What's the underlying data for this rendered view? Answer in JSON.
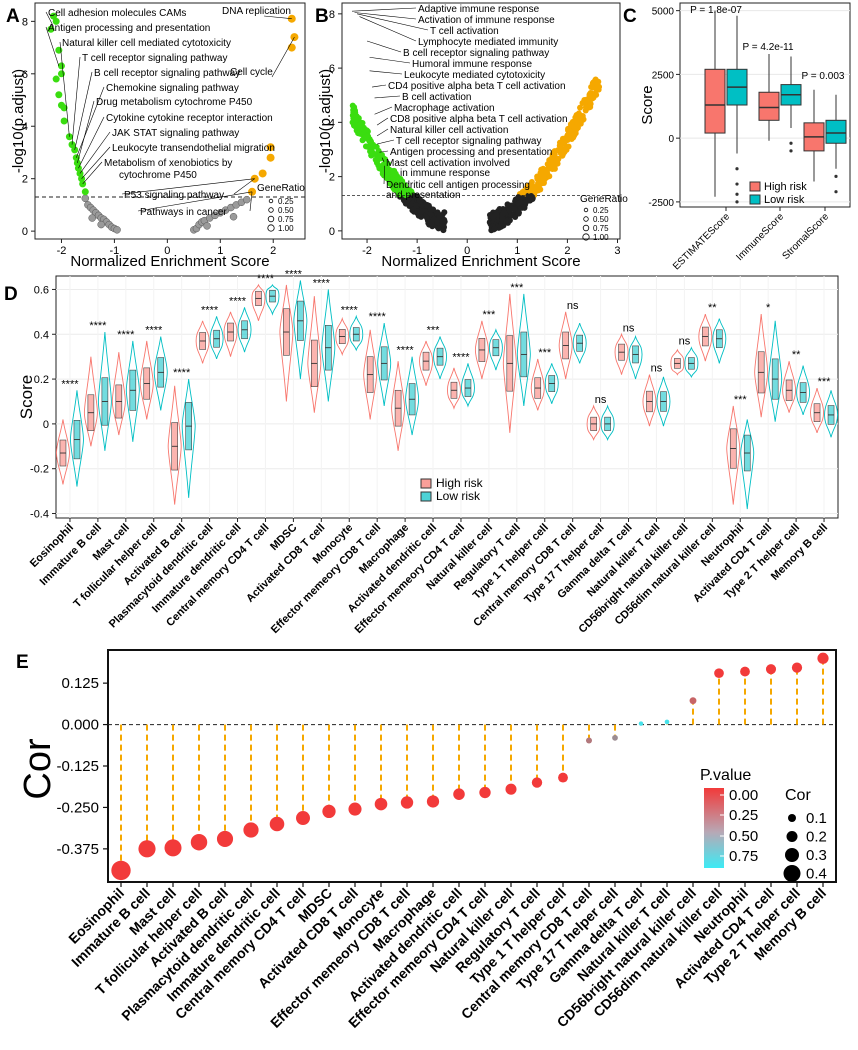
{
  "chart_data": [
    {
      "panel": "A",
      "type": "scatter",
      "xlabel": "Normalized Enrichment Score",
      "ylabel": "-log10(p.adjust)",
      "xlim": [
        -2.5,
        2.6
      ],
      "ylim": [
        -0.3,
        8.7
      ],
      "xticks": [
        -2,
        -1,
        0,
        1,
        2
      ],
      "yticks": [
        0,
        2,
        4,
        6,
        8
      ],
      "threshold": 1.3,
      "legend_title": "GeneRatio",
      "legend_items": [
        "0.25",
        "0.50",
        "0.75",
        "1.00"
      ],
      "labels": [
        {
          "text": "Cell adhesion molecules CAMs",
          "x": -2.15,
          "y": 7.8
        },
        {
          "text": "Antigen processing and presentation",
          "x": -2.05,
          "y": 6.3
        },
        {
          "text": "Natural killer cell mediated cytotoxicity",
          "x": -1.85,
          "y": 3.6
        },
        {
          "text": "T cell receptor signaling pathway",
          "x": -1.8,
          "y": 3.3
        },
        {
          "text": "B cell receptor signaling pathway",
          "x": -1.75,
          "y": 3.1
        },
        {
          "text": "Chemokine signaling pathway",
          "x": -1.72,
          "y": 2.8
        },
        {
          "text": "Drug metabolism cytochrome P450",
          "x": -1.7,
          "y": 2.6
        },
        {
          "text": "Cytokine cytokine receptor interaction",
          "x": -1.68,
          "y": 2.4
        },
        {
          "text": "JAK STAT signaling pathway",
          "x": -1.65,
          "y": 2.2
        },
        {
          "text": "Leukocyte transendothelial migration",
          "x": -1.62,
          "y": 2.0
        },
        {
          "text": "Metabolism of xenobiotics by",
          "x": -1.6,
          "y": 1.8
        },
        {
          "text": "cytochrome P450",
          "x": -1.6,
          "y": 1.8
        },
        {
          "text": "P53 signaling pathway",
          "x": 1.65,
          "y": 2.0
        },
        {
          "text": "Pathways in cancer",
          "x": 1.6,
          "y": 1.5
        },
        {
          "text": "DNA replication",
          "x": 2.35,
          "y": 8.1
        },
        {
          "text": "Cell cycle",
          "x": 2.4,
          "y": 7.4
        }
      ],
      "sig_neg": [
        [
          -2.15,
          8.2
        ],
        [
          -2.1,
          8.0
        ],
        [
          -2.2,
          7.7
        ],
        [
          -2.05,
          6.9
        ],
        [
          -2.0,
          6.3
        ],
        [
          -2.0,
          6.0
        ],
        [
          -2.1,
          5.8
        ],
        [
          -2.05,
          5.2
        ],
        [
          -2.0,
          4.8
        ],
        [
          -1.95,
          4.7
        ],
        [
          -1.95,
          4.2
        ],
        [
          -1.85,
          3.6
        ],
        [
          -1.8,
          3.3
        ],
        [
          -1.75,
          3.1
        ],
        [
          -1.72,
          2.8
        ],
        [
          -1.7,
          2.6
        ],
        [
          -1.68,
          2.4
        ],
        [
          -1.65,
          2.2
        ],
        [
          -1.62,
          2.0
        ],
        [
          -1.6,
          1.8
        ],
        [
          -1.55,
          1.5
        ]
      ],
      "sig_pos": [
        [
          2.35,
          8.1
        ],
        [
          2.4,
          7.4
        ],
        [
          2.35,
          7.0
        ],
        [
          1.95,
          3.2
        ],
        [
          1.95,
          2.8
        ],
        [
          1.65,
          2.0
        ],
        [
          1.8,
          2.2
        ],
        [
          1.6,
          1.5
        ]
      ],
      "nonsig": [
        [
          -1.55,
          1.25
        ],
        [
          -1.5,
          1.0
        ],
        [
          -1.45,
          0.9
        ],
        [
          -1.4,
          0.8
        ],
        [
          -1.35,
          0.7
        ],
        [
          -1.3,
          0.6
        ],
        [
          -1.25,
          0.5
        ],
        [
          -1.2,
          0.45
        ],
        [
          -1.15,
          0.35
        ],
        [
          -1.1,
          0.25
        ],
        [
          -1.05,
          0.15
        ],
        [
          -1.0,
          0.1
        ],
        [
          -0.95,
          0.05
        ],
        [
          -1.42,
          0.5
        ],
        [
          -1.25,
          0.25
        ],
        [
          0.5,
          0.05
        ],
        [
          0.55,
          0.1
        ],
        [
          0.6,
          0.25
        ],
        [
          0.65,
          0.35
        ],
        [
          0.7,
          0.4
        ],
        [
          0.8,
          0.5
        ],
        [
          0.9,
          0.6
        ],
        [
          1.0,
          0.7
        ],
        [
          1.1,
          0.8
        ],
        [
          1.2,
          0.9
        ],
        [
          1.3,
          1.0
        ],
        [
          1.4,
          1.1
        ],
        [
          1.5,
          1.2
        ],
        [
          0.75,
          0.2
        ],
        [
          1.25,
          0.55
        ]
      ]
    },
    {
      "panel": "B",
      "type": "scatter",
      "xlabel": "Normalized Enrichment Score",
      "ylabel": "-log10(p.adjust)",
      "xlim": [
        -2.5,
        3.05
      ],
      "ylim": [
        -0.3,
        8.4
      ],
      "xticks": [
        -2,
        -1,
        0,
        1,
        2,
        3
      ],
      "yticks": [
        0,
        2,
        4,
        6,
        8
      ],
      "threshold": 1.3,
      "legend_title": "GeneRatio",
      "legend_items": [
        "0.25",
        "0.50",
        "0.75",
        "1.00"
      ],
      "labels": [
        {
          "text": "Adaptive immune response",
          "x": -2.3,
          "y": 8.1
        },
        {
          "text": "Activation of immune response",
          "x": -2.25,
          "y": 8.05
        },
        {
          "text": "T cell activation",
          "x": -2.2,
          "y": 8.0
        },
        {
          "text": "Lymphocyte mediated immunity",
          "x": -2.15,
          "y": 7.9
        },
        {
          "text": "B cell receptor signaling pathway",
          "x": -2.0,
          "y": 7.0
        },
        {
          "text": "Humoral immune response",
          "x": -1.95,
          "y": 6.4
        },
        {
          "text": "Leukocyte mediated cytotoxicity",
          "x": -1.95,
          "y": 5.9
        },
        {
          "text": "CD4 positive alpha beta T cell activation",
          "x": -1.9,
          "y": 5.3
        },
        {
          "text": "B cell activation",
          "x": -1.85,
          "y": 4.9
        },
        {
          "text": "Macrophage activation",
          "x": -1.85,
          "y": 4.3
        },
        {
          "text": "CD8 positive alpha beta T cell activation",
          "x": -1.8,
          "y": 3.9
        },
        {
          "text": "Natural killer cell activation",
          "x": -1.8,
          "y": 3.5
        },
        {
          "text": "T cell receptor signaling pathway",
          "x": -1.8,
          "y": 3.2
        },
        {
          "text": "Antigen processing and presentation",
          "x": -1.75,
          "y": 2.9
        },
        {
          "text": "Mast cell activation involved",
          "x": -1.7,
          "y": 2.7
        },
        {
          "text": "in immune response",
          "x": -1.7,
          "y": 2.7
        },
        {
          "text": "Dendritic cell antigen processing",
          "x": -1.65,
          "y": 2.4
        },
        {
          "text": "and presentation",
          "x": -1.65,
          "y": 2.4
        }
      ]
    },
    {
      "panel": "C",
      "type": "box",
      "ylabel": "Score",
      "ylim": [
        -2700,
        5300
      ],
      "yticks": [
        -2500,
        0,
        2500,
        5000
      ],
      "categories": [
        "ESTIMATEScore",
        "ImmuneScore",
        "StromalScore"
      ],
      "pvalues": [
        "P = 1.8e-07",
        "P = 4.2e-11",
        "P = 0.003"
      ],
      "legend": [
        "High risk",
        "Low risk"
      ],
      "colors": {
        "high": "#F8766D",
        "low": "#00BFC4"
      },
      "series": [
        {
          "name": "High risk",
          "boxes": [
            {
              "min": -2300,
              "q1": 200,
              "med": 1300,
              "q3": 2700,
              "max": 5000,
              "outliers": []
            },
            {
              "min": -100,
              "q1": 700,
              "med": 1200,
              "q3": 1800,
              "max": 3300,
              "outliers": []
            },
            {
              "min": -1700,
              "q1": -500,
              "med": 50,
              "q3": 600,
              "max": 1900,
              "outliers": []
            }
          ]
        },
        {
          "name": "Low risk",
          "boxes": [
            {
              "min": -600,
              "q1": 1300,
              "med": 2000,
              "q3": 2700,
              "max": 4800,
              "outliers": [
                -1200,
                -1800,
                -2200,
                -2500
              ]
            },
            {
              "min": 400,
              "q1": 1300,
              "med": 1700,
              "q3": 2100,
              "max": 3200,
              "outliers": [
                -200,
                -500
              ]
            },
            {
              "min": -1200,
              "q1": -200,
              "med": 200,
              "q3": 700,
              "max": 1700,
              "outliers": [
                -1500,
                -2100
              ]
            }
          ]
        }
      ]
    },
    {
      "panel": "D",
      "type": "violin",
      "ylabel": "Score",
      "ylim": [
        -0.42,
        0.66
      ],
      "yticks": [
        -0.4,
        -0.2,
        0.0,
        0.2,
        0.4,
        0.6
      ],
      "legend": [
        "High risk",
        "Low risk"
      ],
      "categories": [
        "Eosinophil",
        "Immature  B cell",
        "Mast cell",
        "T follicular helper cell",
        "Activated B cell",
        "Plasmacytoid dendritic cell",
        "Immature dendritic cell",
        "Central memory CD4 T cell",
        "MDSC",
        "Activated CD8 T cell",
        "Monocyte",
        "Effector memeory CD8 T cell",
        "Macrophage",
        "Activated dendritic cell",
        "Effector memeory CD4 T cell",
        "Natural killer cell",
        "Regulatory T cell",
        "Type 1 T helper cell",
        "Central memory CD8 T cell",
        "Type 17 T helper cell",
        "Gamma delta T cell",
        "Natural killer T cell",
        "CD56bright natural killer cell",
        "CD56dim natural killer cell",
        "Neutrophil",
        "Activated CD4 T cell",
        "Type 2 T helper cell",
        "Memory B cell"
      ],
      "significance": [
        "****",
        "****",
        "****",
        "****",
        "****",
        "****",
        "****",
        "****",
        "****",
        "****",
        "****",
        "****",
        "****",
        "***",
        "****",
        "***",
        "***",
        "***",
        "ns",
        "ns",
        "ns",
        "ns",
        "ns",
        "**",
        "***",
        "*",
        "**",
        "***"
      ],
      "high_median": [
        -0.13,
        0.05,
        0.1,
        0.18,
        -0.1,
        0.37,
        0.41,
        0.56,
        0.41,
        0.27,
        0.39,
        0.22,
        0.07,
        0.28,
        0.15,
        0.33,
        0.27,
        0.16,
        0.35,
        0.0,
        0.32,
        0.1,
        0.27,
        0.39,
        -0.11,
        0.23,
        0.15,
        0.05
      ],
      "low_median": [
        -0.07,
        0.1,
        0.15,
        0.23,
        -0.01,
        0.38,
        0.42,
        0.57,
        0.46,
        0.34,
        0.4,
        0.27,
        0.11,
        0.3,
        0.16,
        0.34,
        0.31,
        0.18,
        0.36,
        0.0,
        0.31,
        0.1,
        0.27,
        0.38,
        -0.13,
        0.2,
        0.14,
        0.04
      ],
      "high_range": [
        [
          -0.27,
          0.02
        ],
        [
          -0.1,
          0.3
        ],
        [
          -0.05,
          0.32
        ],
        [
          0.02,
          0.37
        ],
        [
          -0.36,
          0.17
        ],
        [
          0.27,
          0.46
        ],
        [
          0.3,
          0.5
        ],
        [
          0.46,
          0.62
        ],
        [
          0.1,
          0.62
        ],
        [
          0.05,
          0.57
        ],
        [
          0.31,
          0.47
        ],
        [
          0.02,
          0.42
        ],
        [
          -0.12,
          0.28
        ],
        [
          0.17,
          0.37
        ],
        [
          0.07,
          0.25
        ],
        [
          0.2,
          0.46
        ],
        [
          -0.04,
          0.58
        ],
        [
          0.06,
          0.29
        ],
        [
          0.2,
          0.5
        ],
        [
          -0.07,
          0.08
        ],
        [
          0.22,
          0.4
        ],
        [
          -0.01,
          0.22
        ],
        [
          0.22,
          0.33
        ],
        [
          0.28,
          0.49
        ],
        [
          -0.36,
          0.08
        ],
        [
          0.03,
          0.49
        ],
        [
          0.05,
          0.28
        ],
        [
          -0.04,
          0.16
        ]
      ],
      "low_range": [
        [
          -0.28,
          0.15
        ],
        [
          -0.12,
          0.41
        ],
        [
          -0.08,
          0.37
        ],
        [
          0.06,
          0.39
        ],
        [
          -0.33,
          0.2
        ],
        [
          0.29,
          0.48
        ],
        [
          0.32,
          0.52
        ],
        [
          0.49,
          0.62
        ],
        [
          0.2,
          0.64
        ],
        [
          0.1,
          0.6
        ],
        [
          0.33,
          0.48
        ],
        [
          0.08,
          0.45
        ],
        [
          -0.05,
          0.3
        ],
        [
          0.2,
          0.39
        ],
        [
          0.08,
          0.27
        ],
        [
          0.24,
          0.42
        ],
        [
          0.08,
          0.58
        ],
        [
          0.09,
          0.27
        ],
        [
          0.27,
          0.45
        ],
        [
          -0.07,
          0.08
        ],
        [
          0.2,
          0.39
        ],
        [
          -0.01,
          0.21
        ],
        [
          0.21,
          0.34
        ],
        [
          0.27,
          0.47
        ],
        [
          -0.38,
          0.02
        ],
        [
          0.01,
          0.46
        ],
        [
          0.04,
          0.26
        ],
        [
          -0.06,
          0.15
        ]
      ]
    },
    {
      "panel": "E",
      "type": "lollipop",
      "ylabel": "Cor",
      "ylim": [
        -0.475,
        0.225
      ],
      "yticks": [
        0.125,
        0.0,
        -0.125,
        -0.25,
        -0.375
      ],
      "ytick_labels": [
        "0.125",
        "0.000",
        "-0.125",
        "-0.250",
        "-0.375"
      ],
      "categories": [
        "Eosinophil",
        "Immature  B cell",
        "Mast cell",
        "T follicular helper cell",
        "Activated B cell",
        "Plasmacytoid dendritic cell",
        "Immature dendritic cell",
        "Central memory CD4 T cell",
        "MDSC",
        "Activated CD8 T cell",
        "Monocyte",
        "Effector memeory CD8 T cell",
        "Macrophage",
        "Activated dendritic cell",
        "Effector memeory CD4 T cell",
        "Natural killer cell",
        "Regulatory T cell",
        "Type 1 T helper cell",
        "Central memory CD8 T cell",
        "Type 17 T helper cell",
        "Gamma delta T cell",
        "Natural killer T cell",
        "CD56bright natural killer cell",
        "CD56dim natural killer cell",
        "Neutrophil",
        "Activated CD4 T cell",
        "Type 2 T helper cell",
        "Memory B cell"
      ],
      "values": [
        -0.44,
        -0.375,
        -0.372,
        -0.355,
        -0.345,
        -0.318,
        -0.3,
        -0.282,
        -0.262,
        -0.255,
        -0.24,
        -0.235,
        -0.232,
        -0.21,
        -0.205,
        -0.195,
        -0.175,
        -0.16,
        -0.048,
        -0.04,
        0.003,
        0.008,
        0.072,
        0.155,
        0.16,
        0.167,
        0.172,
        0.2
      ],
      "pvalues": [
        0,
        0,
        0,
        0,
        0,
        0,
        0,
        0,
        0,
        0,
        0,
        0,
        0,
        0,
        0,
        0,
        0,
        0,
        0.3,
        0.4,
        0.8,
        0.8,
        0.2,
        0,
        0,
        0,
        0,
        0
      ],
      "legend_pvalue_title": "P.value",
      "legend_pvalue_ticks": [
        "0.00",
        "0.25",
        "0.50",
        "0.75"
      ],
      "legend_cor_title": "Cor",
      "legend_cor_items": [
        "0.1",
        "0.2",
        "0.3",
        "0.4"
      ]
    }
  ],
  "panel_letters": [
    "A",
    "B",
    "C",
    "D",
    "E"
  ],
  "colors": {
    "green": "#3ADD10",
    "orange": "#F5A800",
    "grey": "#9A9A9A",
    "dark": "#222222",
    "high": "#F8766D",
    "low": "#00BFC4",
    "dot_red": "#F23A3A",
    "lolli": "#F5A800"
  }
}
